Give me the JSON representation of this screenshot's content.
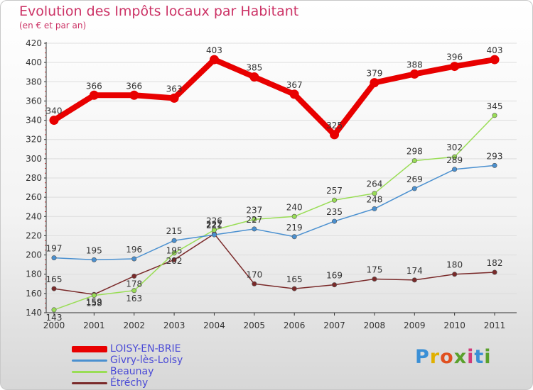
{
  "header": {
    "title": "Evolution des Impôts locaux par Habitant",
    "subtitle": "(en € et par an)"
  },
  "logo": {
    "text": "Proxiti",
    "colors": [
      "#3a8fd6",
      "#e0b000",
      "#e05020",
      "#5aa02c",
      "#d23a78",
      "#3a8fd6",
      "#5aa02c"
    ]
  },
  "chart_data": {
    "type": "line",
    "title": "Evolution des Impôts locaux par Habitant",
    "subtitle": "(en € et par an)",
    "xlabel": "",
    "ylabel": "",
    "x": [
      "2000",
      "2001",
      "2002",
      "2003",
      "2004",
      "2005",
      "2006",
      "2007",
      "2008",
      "2009",
      "2010",
      "2011"
    ],
    "ylim": [
      140,
      420
    ],
    "yticks": [
      140,
      160,
      180,
      200,
      220,
      240,
      260,
      280,
      300,
      320,
      340,
      360,
      380,
      400,
      420
    ],
    "grid": true,
    "legend_position": "bottom-left",
    "series": [
      {
        "name": "LOISY-EN-BRIE",
        "color": "#e80000",
        "values": [
          340,
          366,
          366,
          363,
          403,
          385,
          367,
          325,
          379,
          388,
          396,
          403
        ],
        "labels": [
          "340",
          "366",
          "366",
          "363",
          "403",
          "385",
          "367",
          "325",
          "379",
          "388",
          "396",
          "403"
        ]
      },
      {
        "name": "Givry-lès-Loisy",
        "color": "#4a90d0",
        "values": [
          197,
          195,
          196,
          215,
          221,
          227,
          219,
          235,
          248,
          269,
          289,
          293
        ],
        "labels": [
          "197",
          "195",
          "196",
          "215",
          "221",
          "227",
          "219",
          "235",
          "248",
          "269",
          "289",
          "293"
        ]
      },
      {
        "name": "Beaunay",
        "color": "#99dd55",
        "values": [
          143,
          158,
          163,
          202,
          226,
          237,
          240,
          257,
          264,
          298,
          302,
          345
        ],
        "labels": [
          "143",
          "158",
          "163",
          "202",
          "226",
          "237",
          "240",
          "257",
          "264",
          "298",
          "302",
          "345"
        ]
      },
      {
        "name": "Étréchy",
        "color": "#7a2a2a",
        "values": [
          165,
          159,
          178,
          195,
          222,
          170,
          165,
          169,
          175,
          174,
          180,
          182
        ],
        "labels": [
          "165",
          "159",
          "178",
          "195",
          "222",
          "170",
          "165",
          "169",
          "175",
          "174",
          "180",
          "182"
        ]
      }
    ]
  }
}
